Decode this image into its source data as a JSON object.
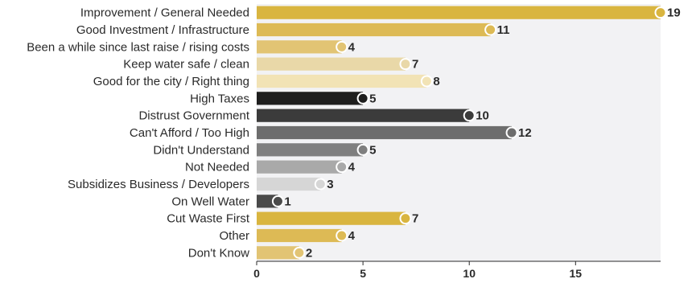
{
  "chart_data": {
    "type": "bar",
    "orientation": "horizontal",
    "categories": [
      "Improvement / General Needed",
      "Good Investment / Infrastructure",
      "Been a while since last raise / rising costs",
      "Keep water safe / clean",
      "Good for the city / Right thing",
      "High Taxes",
      "Distrust Government",
      "Can't Afford / Too High",
      "Didn't Understand",
      "Not Needed",
      "Subsidizes Business / Developers",
      "On Well Water",
      "Cut Waste First",
      "Other",
      "Don't Know"
    ],
    "values": [
      19,
      11,
      4,
      7,
      8,
      5,
      10,
      12,
      5,
      4,
      3,
      1,
      7,
      4,
      2
    ],
    "colors": [
      "#d9b53f",
      "#ddba55",
      "#e2c474",
      "#e9d8a8",
      "#f2e3b5",
      "#1e1e1e",
      "#3b3b3b",
      "#6d6d6d",
      "#7f7f7f",
      "#a9a9a9",
      "#d6d6d6",
      "#4a4a4a",
      "#d9b53f",
      "#ddba55",
      "#e2c474"
    ],
    "xlim": [
      0,
      19
    ],
    "xticks": [
      0,
      5,
      10,
      15
    ],
    "title": "",
    "xlabel": "",
    "ylabel": "",
    "grid": false,
    "plot_background": "#f2f2f4"
  }
}
